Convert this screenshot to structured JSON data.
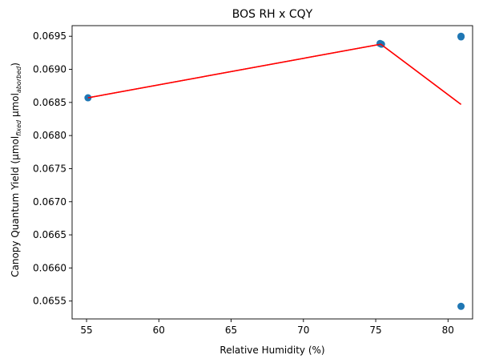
{
  "chart_data": {
    "type": "scatter",
    "title": "BOS RH x CQY",
    "xlabel": "Relative Humidity (%)",
    "ylabel": {
      "main": "Canopy Quantum Yield (",
      "mu1": "μmol",
      "sub1": "fixed",
      "sep": " ",
      "mu2": "μmol",
      "sub2": "aborbed",
      "close": ")"
    },
    "xlim": [
      54.0,
      81.7
    ],
    "ylim": [
      0.06523,
      0.06966
    ],
    "xticks": [
      55,
      60,
      65,
      70,
      75,
      80
    ],
    "xtick_labels": [
      "55",
      "60",
      "65",
      "70",
      "75",
      "80"
    ],
    "yticks": [
      0.0655,
      0.066,
      0.0665,
      0.067,
      0.0675,
      0.068,
      0.0685,
      0.069,
      0.0695
    ],
    "ytick_labels": [
      "0.0655",
      "0.0660",
      "0.0665",
      "0.0670",
      "0.0675",
      "0.0680",
      "0.0685",
      "0.0690",
      "0.0695"
    ],
    "grid": false,
    "series": [
      {
        "kind": "scatter",
        "color": "#1f77b4",
        "points": [
          {
            "x": 55.1,
            "y": 0.06857
          },
          {
            "x": 75.3,
            "y": 0.06939
          },
          {
            "x": 75.4,
            "y": 0.06938
          },
          {
            "x": 80.9,
            "y": 0.0695
          },
          {
            "x": 80.9,
            "y": 0.06949
          },
          {
            "x": 80.9,
            "y": 0.06542
          }
        ]
      },
      {
        "kind": "line",
        "color": "#ff0000",
        "points": [
          {
            "x": 55.1,
            "y": 0.06857
          },
          {
            "x": 75.35,
            "y": 0.06938
          },
          {
            "x": 80.9,
            "y": 0.06847
          }
        ]
      }
    ]
  }
}
